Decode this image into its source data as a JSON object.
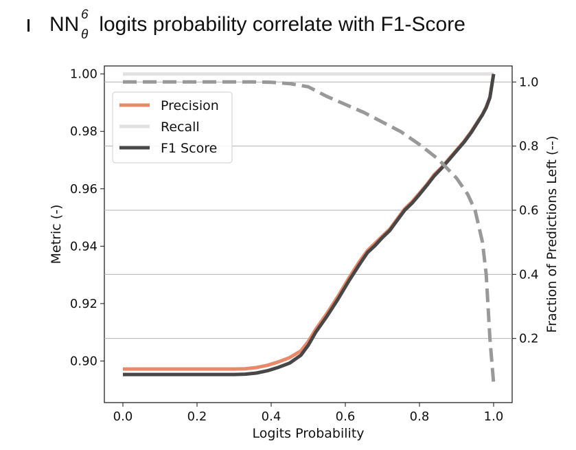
{
  "chart_data": {
    "type": "line",
    "title": {
      "prefix": "NN",
      "sup": "6",
      "sub": "θ",
      "rest": " logits probability correlate with F1-Score"
    },
    "xlabel": "Logits Probability",
    "ylabel": "Metric (-)",
    "y2label": "Fraction of Predictions Left (--)",
    "xlim": [
      -0.05,
      1.05
    ],
    "ylim": [
      0.8855,
      1.0028
    ],
    "y2lim": [
      0.0,
      1.05
    ],
    "xticks": [
      0.0,
      0.2,
      0.4,
      0.6,
      0.8,
      1.0
    ],
    "xtick_labels": [
      "0.0",
      "0.2",
      "0.4",
      "0.6",
      "0.8",
      "1.0"
    ],
    "yticks": [
      0.9,
      0.92,
      0.94,
      0.96,
      0.98,
      1.0
    ],
    "ytick_labels": [
      "0.90",
      "0.92",
      "0.94",
      "0.96",
      "0.98",
      "1.00"
    ],
    "y2ticks": [
      0.2,
      0.4,
      0.6,
      0.8,
      1.0
    ],
    "y2tick_labels": [
      "0.2",
      "0.4",
      "0.6",
      "0.8",
      "1.0"
    ],
    "grid": "horizontal at right-axis ticks",
    "legend_position": "upper-left",
    "series": [
      {
        "name": "Precision",
        "axis": "left",
        "color": "#e8896a",
        "style": "solid",
        "x": [
          0.0,
          0.1,
          0.2,
          0.3,
          0.33,
          0.36,
          0.39,
          0.42,
          0.45,
          0.48,
          0.5,
          0.52,
          0.55,
          0.58,
          0.61,
          0.64,
          0.66,
          0.68,
          0.7,
          0.72,
          0.74,
          0.76,
          0.78,
          0.8,
          0.82,
          0.84,
          0.86,
          0.88,
          0.9,
          0.92,
          0.94,
          0.96,
          0.97,
          0.98,
          0.99,
          1.0
        ],
        "y": [
          0.8972,
          0.8972,
          0.8972,
          0.8972,
          0.8973,
          0.8977,
          0.8985,
          0.8997,
          0.9012,
          0.9035,
          0.9068,
          0.911,
          0.9165,
          0.9225,
          0.929,
          0.935,
          0.9385,
          0.941,
          0.9435,
          0.946,
          0.9495,
          0.953,
          0.9555,
          0.9585,
          0.9615,
          0.965,
          0.9675,
          0.9705,
          0.9735,
          0.9765,
          0.98,
          0.984,
          0.986,
          0.9885,
          0.992,
          1.0
        ]
      },
      {
        "name": "Recall",
        "axis": "left",
        "color": "#e2e2e2",
        "style": "solid",
        "x": [
          0.0,
          1.0
        ],
        "y": [
          1.0,
          1.0
        ]
      },
      {
        "name": "F1 Score",
        "axis": "left",
        "color": "#474747",
        "style": "solid",
        "x": [
          0.0,
          0.1,
          0.2,
          0.3,
          0.33,
          0.36,
          0.39,
          0.42,
          0.45,
          0.48,
          0.5,
          0.52,
          0.55,
          0.58,
          0.61,
          0.64,
          0.66,
          0.68,
          0.7,
          0.72,
          0.74,
          0.76,
          0.78,
          0.8,
          0.82,
          0.84,
          0.86,
          0.88,
          0.9,
          0.92,
          0.94,
          0.96,
          0.97,
          0.98,
          0.99,
          1.0
        ],
        "y": [
          0.8953,
          0.8953,
          0.8953,
          0.8953,
          0.8954,
          0.8958,
          0.8966,
          0.8978,
          0.8993,
          0.902,
          0.9055,
          0.91,
          0.9155,
          0.9215,
          0.928,
          0.934,
          0.9378,
          0.9402,
          0.943,
          0.9455,
          0.949,
          0.9525,
          0.955,
          0.958,
          0.9612,
          0.9645,
          0.9672,
          0.9702,
          0.9732,
          0.9762,
          0.9797,
          0.9838,
          0.9858,
          0.9883,
          0.9918,
          1.0
        ]
      },
      {
        "name": "",
        "axis": "right",
        "color": "#999999",
        "style": "dashed",
        "x": [
          0.0,
          0.1,
          0.2,
          0.3,
          0.35,
          0.4,
          0.45,
          0.5,
          0.55,
          0.6,
          0.65,
          0.7,
          0.75,
          0.8,
          0.85,
          0.9,
          0.93,
          0.95,
          0.97,
          0.98,
          0.99,
          1.0
        ],
        "y": [
          1.0,
          1.0,
          1.0,
          1.0,
          1.0,
          0.999,
          0.995,
          0.985,
          0.955,
          0.93,
          0.905,
          0.875,
          0.845,
          0.805,
          0.76,
          0.7,
          0.65,
          0.6,
          0.5,
          0.4,
          0.2,
          0.06
        ]
      }
    ]
  }
}
